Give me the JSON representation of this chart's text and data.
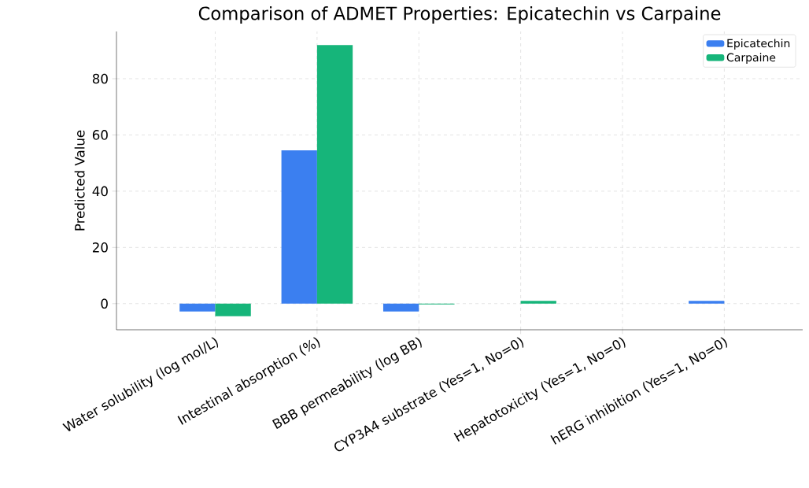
{
  "chart_data": {
    "type": "bar",
    "title": "Comparison of ADMET Properties: Epicatechin vs Carpaine",
    "ylabel": "Predicted Value",
    "categories": [
      "Water solubility (log mol/L)",
      "Intestinal absorption (%)",
      "BBB permeability (log BB)",
      "CYP3A4 substrate (Yes=1, No=0)",
      "Hepatotoxicity (Yes=1, No=0)",
      "hERG inhibition (Yes=1, No=0)"
    ],
    "series": [
      {
        "name": "Epicatechin",
        "color": "#3b7ff0",
        "values": [
          -2.8,
          54.5,
          -2.8,
          0,
          0,
          1
        ]
      },
      {
        "name": "Carpaine",
        "color": "#16b57a",
        "values": [
          -4.5,
          92,
          -0.3,
          1,
          0,
          0
        ]
      }
    ],
    "ylim": [
      -9.3,
      96.8
    ],
    "yticks": [
      0,
      20,
      40,
      60,
      80
    ],
    "grid": true,
    "legend": "top right"
  }
}
